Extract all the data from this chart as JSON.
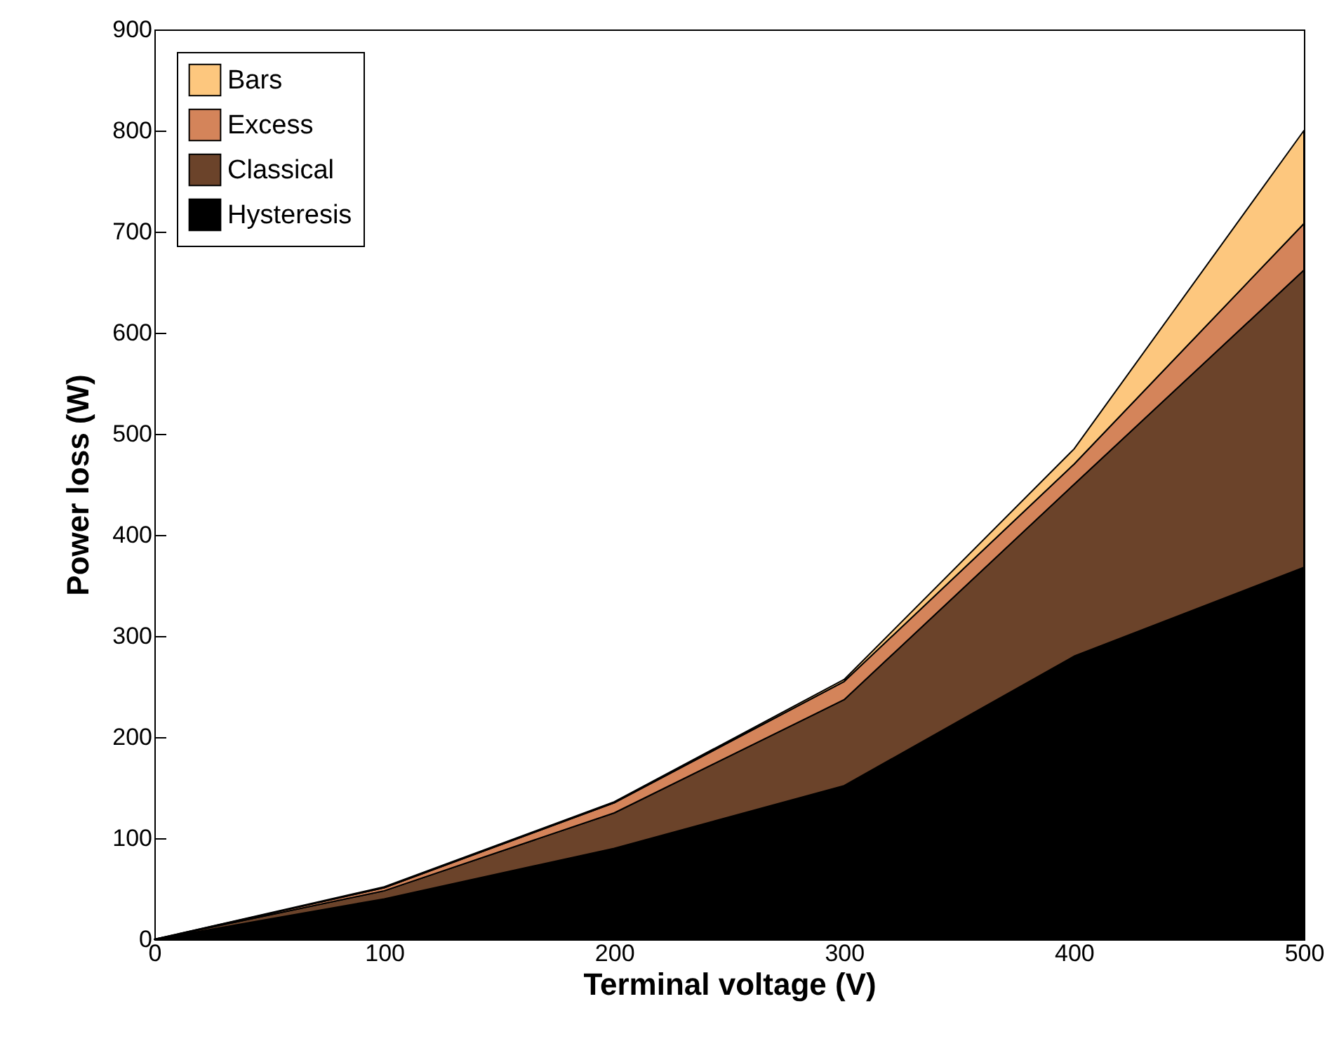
{
  "chart_data": {
    "type": "area",
    "stacked": true,
    "xlabel": "Terminal voltage (V)",
    "ylabel": "Power loss (W)",
    "x": [
      0,
      100,
      200,
      300,
      400,
      500
    ],
    "series": [
      {
        "name": "Hysteresis",
        "color": "#000000",
        "values": [
          0,
          40,
          90,
          152,
          280,
          368
        ]
      },
      {
        "name": "Classical",
        "color": "#6b432a",
        "values": [
          0,
          8,
          35,
          85,
          170,
          294
        ]
      },
      {
        "name": "Excess",
        "color": "#d4845a",
        "values": [
          0,
          3,
          10,
          18,
          20,
          46
        ]
      },
      {
        "name": "Bars",
        "color": "#fdc77e",
        "values": [
          0,
          1,
          1,
          2,
          15,
          92
        ]
      }
    ],
    "xlim": [
      0,
      500
    ],
    "xticks": [
      0,
      100,
      200,
      300,
      400,
      500
    ],
    "ylim": [
      0,
      900
    ],
    "yticks": [
      0,
      100,
      200,
      300,
      400,
      500,
      600,
      700,
      800,
      900
    ],
    "grid": false,
    "legend": "top left"
  }
}
